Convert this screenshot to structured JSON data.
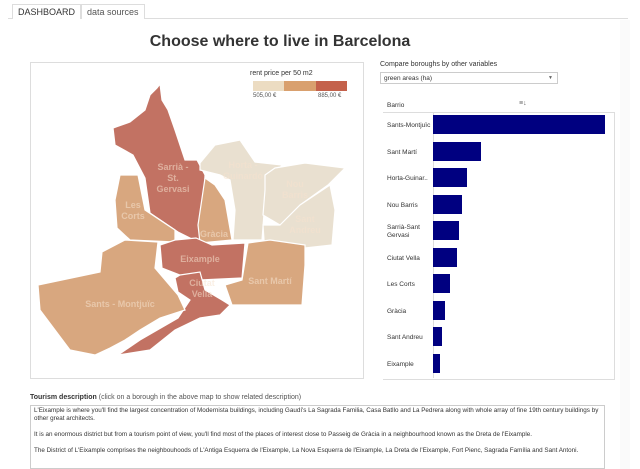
{
  "tabs": [
    {
      "label": "DASHBOARD",
      "active": true
    },
    {
      "label": "data sources",
      "active": false
    }
  ],
  "title": "Choose where to live in Barcelona",
  "map": {
    "legend": {
      "title": "rent price per 50 m2",
      "min": "505,00 €",
      "max": "885,00 €",
      "colors": [
        "#ecdcc2",
        "#d9a06e",
        "#c4614b"
      ]
    },
    "boroughs": [
      {
        "name": "Sarrià - St. Gervasi",
        "tier": 3
      },
      {
        "name": "Horta - Guinardó",
        "tier": 1
      },
      {
        "name": "Nou Barris",
        "tier": 1
      },
      {
        "name": "Sant Andreu",
        "tier": 1
      },
      {
        "name": "Les Corts",
        "tier": 2
      },
      {
        "name": "Gràcia",
        "tier": 2
      },
      {
        "name": "Eixample",
        "tier": 3
      },
      {
        "name": "Ciutat Vella",
        "tier": 3
      },
      {
        "name": "Sant Martí",
        "tier": 2
      },
      {
        "name": "Sants - Montjuïc",
        "tier": 2
      }
    ],
    "fill_colors": {
      "1": "#e9e0d0",
      "2": "#d8a77f",
      "3": "#c27263"
    }
  },
  "compare": {
    "label": "Compare boroughs by other variables",
    "selected": "green areas (ha)"
  },
  "chart_data": {
    "type": "bar",
    "orientation": "horizontal",
    "ylabel": "Barrio",
    "categories": [
      "Sants-Montjuïc",
      "Sant Martí",
      "Horta-Guinar..",
      "Nou Barris",
      "Sarrià-Sant Gervasi",
      "Ciutat Vella",
      "Les Corts",
      "Gràcia",
      "Sant Andreu",
      "Eixample"
    ],
    "values": [
      100,
      28,
      20,
      17,
      15,
      14,
      10,
      7,
      5,
      4
    ],
    "value_note": "relative (no axis printed)",
    "bar_color": "#000080"
  },
  "description": {
    "heading": "Tourism description",
    "hint": "(click on a borough in the above map to show related description)",
    "paragraphs": [
      "L'Eixample is where you'll find the largest concentration of Modernista buildings, including Gaudí's La Sagrada Familia, Casa Batllo and La Pedrera along with whole array of fine 19th century buildings by other great architects.",
      "It is an enormous district but from a tourism point of view, you'll find most of the places of interest close to Passeig de Gràcia in a neighbourhood known as the Dreta de l'Eixample.",
      "The District of L'Eixample comprises the neighbouhoods of L'Antiga Esquerra de l'Eixample, La Nova Esquerra de l'Eixample, La Dreta de l'Eixample, Fort Pienc, Sagrada Família and Sant Antoni."
    ]
  }
}
